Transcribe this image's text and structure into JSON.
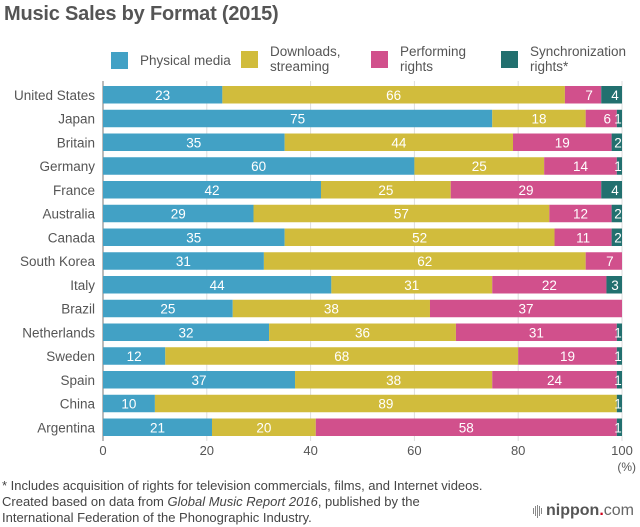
{
  "chart_data": {
    "type": "bar",
    "orientation": "horizontal",
    "stacked": true,
    "title": "Music Sales by Format (2015)",
    "xlabel": "",
    "xunit": "(%)",
    "ylabel": "",
    "xlim": [
      0,
      100
    ],
    "xticks": [
      0,
      20,
      40,
      60,
      80,
      100
    ],
    "grid": true,
    "legend_position": "top-right",
    "categories": [
      "United States",
      "Japan",
      "Britain",
      "Germany",
      "France",
      "Australia",
      "Canada",
      "South Korea",
      "Italy",
      "Brazil",
      "Netherlands",
      "Sweden",
      "Spain",
      "China",
      "Argentina"
    ],
    "series": [
      {
        "name": "Physical media",
        "color": "#42a1c5",
        "values": [
          23,
          75,
          35,
          60,
          42,
          29,
          35,
          31,
          44,
          25,
          32,
          12,
          37,
          10,
          21
        ]
      },
      {
        "name": "Downloads, streaming",
        "color": "#d1bc3c",
        "values": [
          66,
          18,
          44,
          25,
          25,
          57,
          52,
          62,
          31,
          38,
          36,
          68,
          38,
          89,
          20
        ]
      },
      {
        "name": "Performing rights",
        "color": "#d1508c",
        "values": [
          7,
          6,
          19,
          14,
          29,
          12,
          11,
          7,
          22,
          37,
          31,
          19,
          24,
          0,
          58
        ]
      },
      {
        "name": "Synchronization rights*",
        "color": "#22706f",
        "values": [
          4,
          1,
          2,
          1,
          4,
          2,
          2,
          0,
          3,
          0,
          1,
          1,
          1,
          1,
          1
        ]
      }
    ]
  },
  "legend": [
    {
      "label": "Physical media",
      "color": "#42a1c5"
    },
    {
      "label": "Downloads,\nstreaming",
      "color": "#d1bc3c"
    },
    {
      "label": "Performing\nrights",
      "color": "#d1508c"
    },
    {
      "label": "Synchronization\nrights*",
      "color": "#22706f"
    }
  ],
  "footnotes": {
    "asterisk": "* Includes acquisition of rights for television commercials, films, and Internet videos.",
    "source_prefix": "Created based on data from ",
    "source_title": "Global Music Report 2016",
    "source_suffix": ", published by the",
    "source_line2": "International Federation of the Phonographic Industry."
  },
  "logo": {
    "brand": "nippon",
    "dot": ".",
    "suffix": "com"
  }
}
